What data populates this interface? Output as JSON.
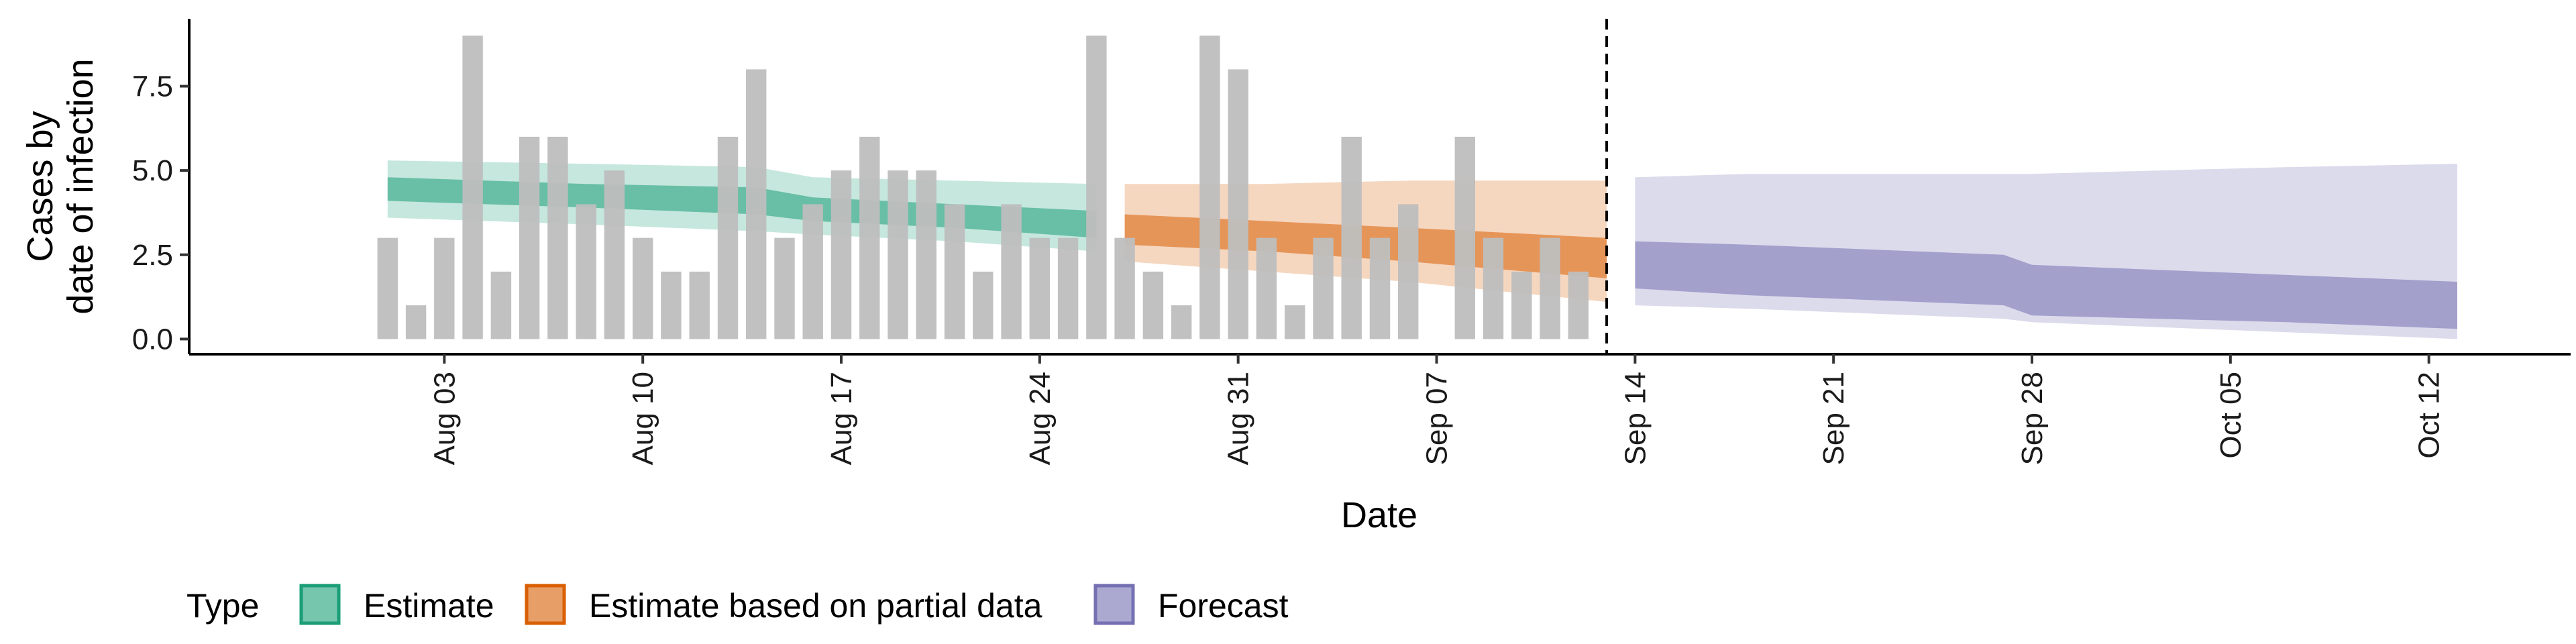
{
  "chart_data": {
    "type": "bar",
    "xlabel": "Date",
    "ylabel": [
      "Cases by",
      "date of infection"
    ],
    "ylim": [
      -0.45,
      9.5
    ],
    "xlim": [
      "2020-07-25",
      "2020-10-17"
    ],
    "yticks": [
      {
        "value": 0,
        "label": "0.0"
      },
      {
        "value": 2.5,
        "label": "2.5"
      },
      {
        "value": 5,
        "label": "5.0"
      },
      {
        "value": 7.5,
        "label": "7.5"
      }
    ],
    "xticks": [
      {
        "date": "2020-08-03",
        "label": "Aug 03"
      },
      {
        "date": "2020-08-10",
        "label": "Aug 10"
      },
      {
        "date": "2020-08-17",
        "label": "Aug 17"
      },
      {
        "date": "2020-08-24",
        "label": "Aug 24"
      },
      {
        "date": "2020-08-31",
        "label": "Aug 31"
      },
      {
        "date": "2020-09-07",
        "label": "Sep 07"
      },
      {
        "date": "2020-09-14",
        "label": "Sep 14"
      },
      {
        "date": "2020-09-21",
        "label": "Sep 21"
      },
      {
        "date": "2020-09-28",
        "label": "Sep 28"
      },
      {
        "date": "2020-10-05",
        "label": "Oct 05"
      },
      {
        "date": "2020-10-12",
        "label": "Oct 12"
      }
    ],
    "bar_color": "#bebebe",
    "bars": {
      "start": "2020-08-01",
      "values": [
        3,
        1,
        3,
        9,
        2,
        6,
        6,
        4,
        5,
        3,
        2,
        2,
        6,
        8,
        3,
        4,
        5,
        6,
        5,
        5,
        4,
        2,
        4,
        3,
        3,
        9,
        3,
        2,
        1,
        9,
        8,
        3,
        1,
        3,
        6,
        3,
        4,
        0,
        6,
        3,
        2,
        3,
        2
      ]
    },
    "vline": "2020-09-13",
    "series": [
      {
        "name": "Estimate",
        "color": "#1b9e77",
        "bands": [
          {
            "date": "2020-08-01",
            "lower90": 3.6,
            "upper90": 5.3,
            "lower50": 4.1,
            "upper50": 4.8
          },
          {
            "date": "2020-08-08",
            "lower90": 3.4,
            "upper90": 5.2,
            "lower50": 3.9,
            "upper50": 4.6
          },
          {
            "date": "2020-08-14",
            "lower90": 3.2,
            "upper90": 5.1,
            "lower50": 3.7,
            "upper50": 4.5
          },
          {
            "date": "2020-08-16",
            "lower90": 3.1,
            "upper90": 4.8,
            "lower50": 3.5,
            "upper50": 4.2
          },
          {
            "date": "2020-08-21",
            "lower90": 2.9,
            "upper90": 4.7,
            "lower50": 3.3,
            "upper50": 4.0
          },
          {
            "date": "2020-08-26",
            "lower90": 2.6,
            "upper90": 4.6,
            "lower50": 3.0,
            "upper50": 3.8
          }
        ]
      },
      {
        "name": "Estimate based on partial data",
        "color": "#d95f02",
        "bands": [
          {
            "date": "2020-08-27",
            "lower90": 2.3,
            "upper90": 4.6,
            "lower50": 2.8,
            "upper50": 3.7
          },
          {
            "date": "2020-09-01",
            "lower90": 2.0,
            "upper90": 4.6,
            "lower50": 2.6,
            "upper50": 3.5
          },
          {
            "date": "2020-09-06",
            "lower90": 1.7,
            "upper90": 4.7,
            "lower50": 2.3,
            "upper50": 3.3
          },
          {
            "date": "2020-09-13",
            "lower90": 1.1,
            "upper90": 4.7,
            "lower50": 1.8,
            "upper50": 3.0
          }
        ]
      },
      {
        "name": "Forecast",
        "color": "#7570b3",
        "bands": [
          {
            "date": "2020-09-14",
            "lower90": 1.0,
            "upper90": 4.8,
            "lower50": 1.5,
            "upper50": 2.9
          },
          {
            "date": "2020-09-18",
            "lower90": 0.9,
            "upper90": 4.9,
            "lower50": 1.3,
            "upper50": 2.8
          },
          {
            "date": "2020-09-27",
            "lower90": 0.6,
            "upper90": 4.9,
            "lower50": 1.0,
            "upper50": 2.5
          },
          {
            "date": "2020-09-28",
            "lower90": 0.5,
            "upper90": 4.9,
            "lower50": 0.7,
            "upper50": 2.2
          },
          {
            "date": "2020-10-07",
            "lower90": 0.2,
            "upper90": 5.1,
            "lower50": 0.5,
            "upper50": 1.9
          },
          {
            "date": "2020-10-13",
            "lower90": 0.0,
            "upper90": 5.2,
            "lower50": 0.3,
            "upper50": 1.7
          }
        ]
      }
    ],
    "legend": {
      "title": "Type",
      "position": "bottom-left"
    }
  }
}
